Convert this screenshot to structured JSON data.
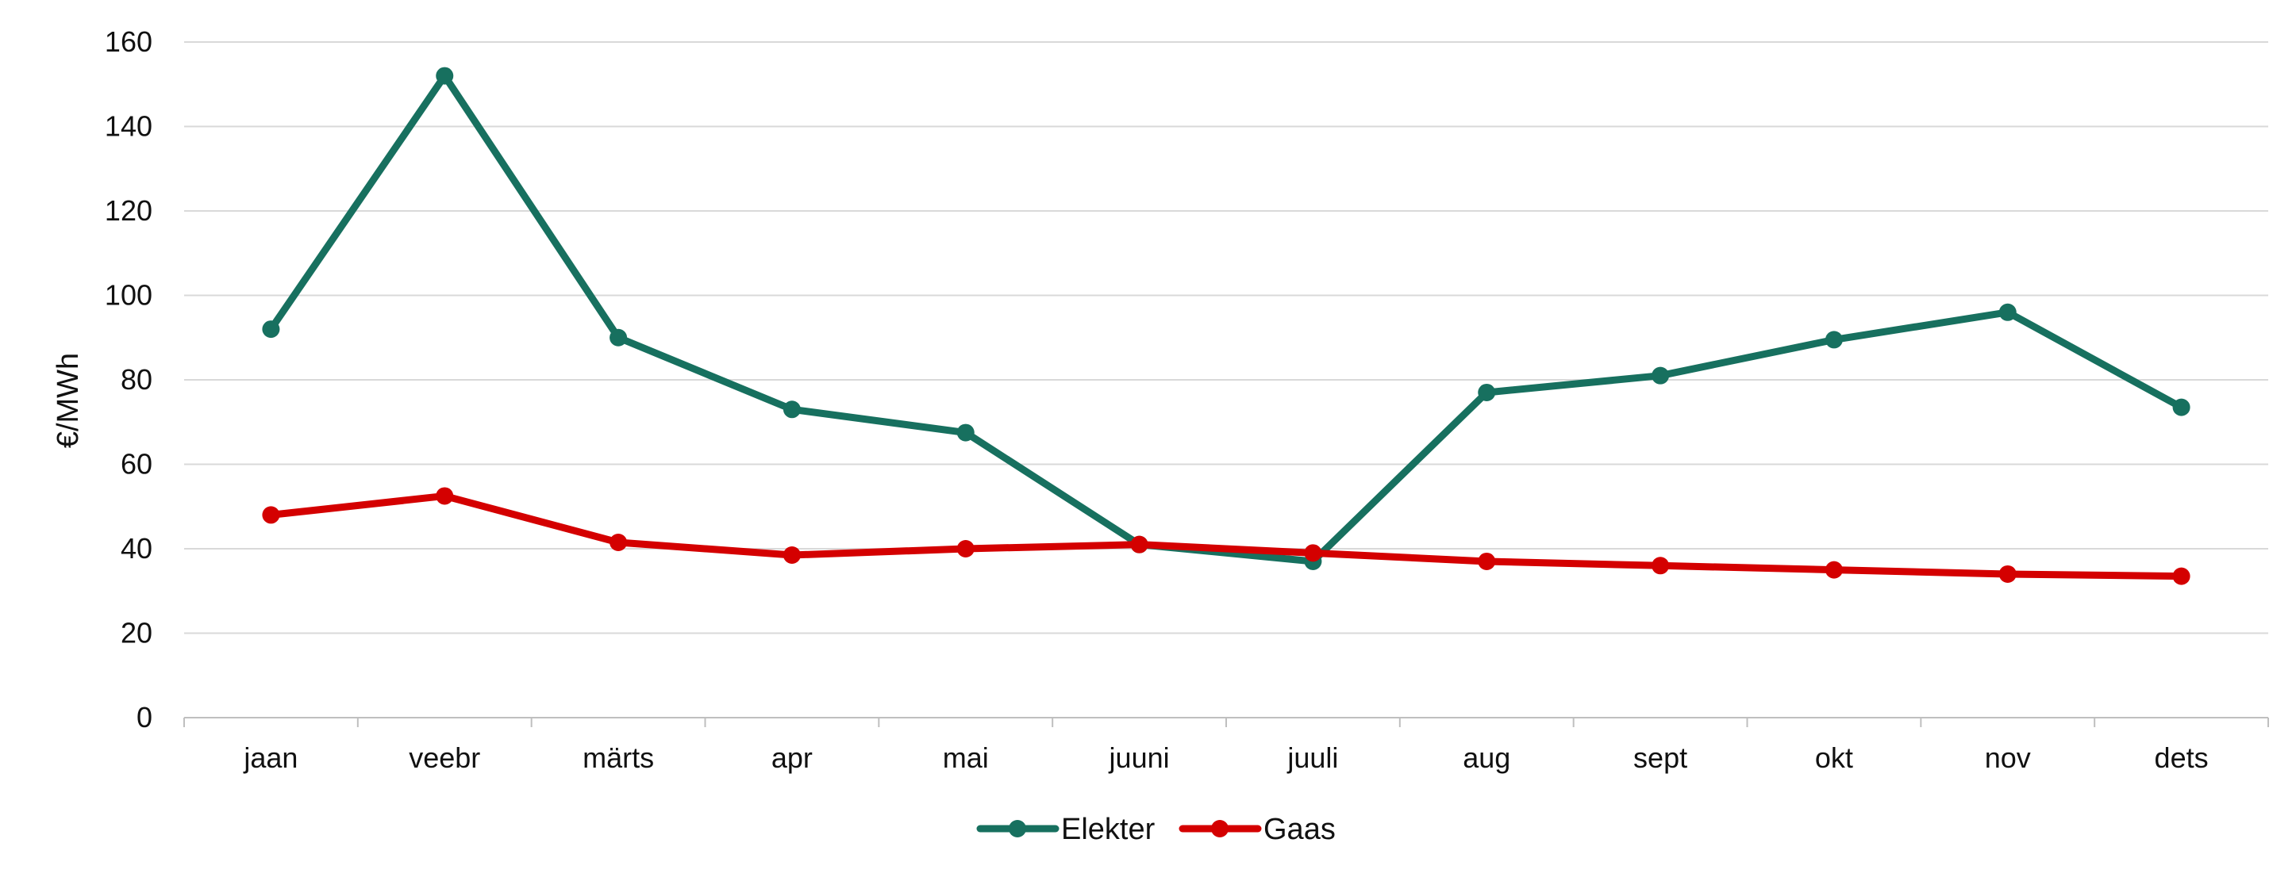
{
  "chart_data": {
    "type": "line",
    "title": "",
    "xlabel": "",
    "ylabel": "€/MWh",
    "ylim": [
      0,
      160
    ],
    "yticks": [
      0,
      20,
      40,
      60,
      80,
      100,
      120,
      140,
      160
    ],
    "categories": [
      "jaan",
      "veebr",
      "märts",
      "apr",
      "mai",
      "juuni",
      "juuli",
      "aug",
      "sept",
      "okt",
      "nov",
      "dets"
    ],
    "series": [
      {
        "name": "Elekter",
        "color": "#17705F",
        "values": [
          92,
          152,
          90,
          73,
          67.5,
          41,
          37,
          77,
          81,
          89.5,
          96,
          73.5
        ]
      },
      {
        "name": "Gaas",
        "color": "#D40000",
        "values": [
          48,
          52.5,
          41.5,
          38.5,
          40,
          41,
          39,
          37,
          36,
          35,
          34,
          33.5
        ]
      }
    ],
    "grid": true,
    "legend": "bottom-center"
  }
}
